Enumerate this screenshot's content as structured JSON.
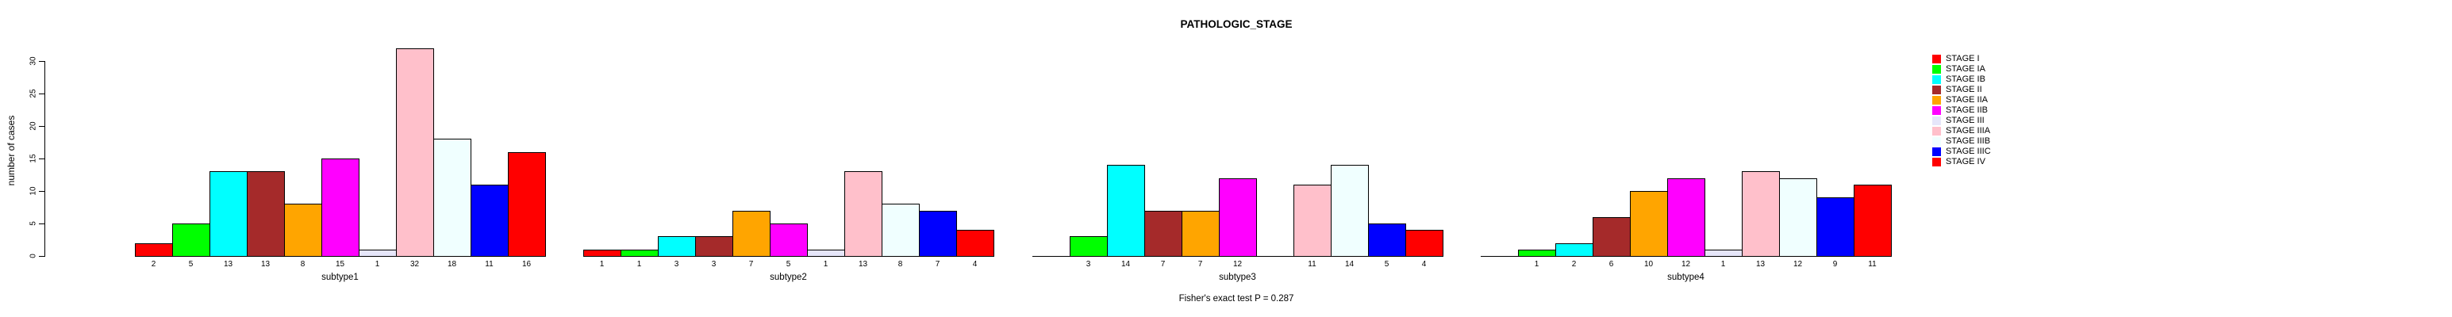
{
  "title": "PATHOLOGIC_STAGE",
  "chart_data": {
    "type": "bar",
    "title": "PATHOLOGIC_STAGE",
    "ylabel": "number of cases",
    "xlabel": "",
    "ylim": [
      0,
      32
    ],
    "yticks": [
      0,
      5,
      10,
      15,
      20,
      25,
      30
    ],
    "grid": false,
    "legend_position": "right",
    "annotation": "Fisher's exact test P = 0.287",
    "categories": [
      "STAGE I",
      "STAGE IA",
      "STAGE IB",
      "STAGE II",
      "STAGE IIA",
      "STAGE IIB",
      "STAGE III",
      "STAGE IIIA",
      "STAGE IIIB",
      "STAGE IIIC",
      "STAGE IV"
    ],
    "colors": [
      "#FF0000",
      "#00FF00",
      "#00FFFF",
      "#A52A2A",
      "#FFA500",
      "#FF00FF",
      "#E6E6FA",
      "#FFC0CB",
      "#F0FFFF",
      "#0000FF",
      "#FF0000"
    ],
    "bar_border_color": "#000000",
    "series": [
      {
        "name": "subtype1",
        "values": [
          2,
          5,
          13,
          13,
          8,
          15,
          1,
          32,
          18,
          11,
          16
        ]
      },
      {
        "name": "subtype2",
        "values": [
          1,
          1,
          3,
          3,
          7,
          5,
          1,
          13,
          8,
          7,
          4
        ]
      },
      {
        "name": "subtype3",
        "values": [
          0,
          3,
          14,
          7,
          7,
          12,
          0,
          11,
          14,
          5,
          4
        ]
      },
      {
        "name": "subtype4",
        "values": [
          0,
          1,
          2,
          6,
          10,
          12,
          1,
          13,
          12,
          9,
          11
        ]
      }
    ],
    "value_labels_shown_only_for_nonzero": true
  }
}
